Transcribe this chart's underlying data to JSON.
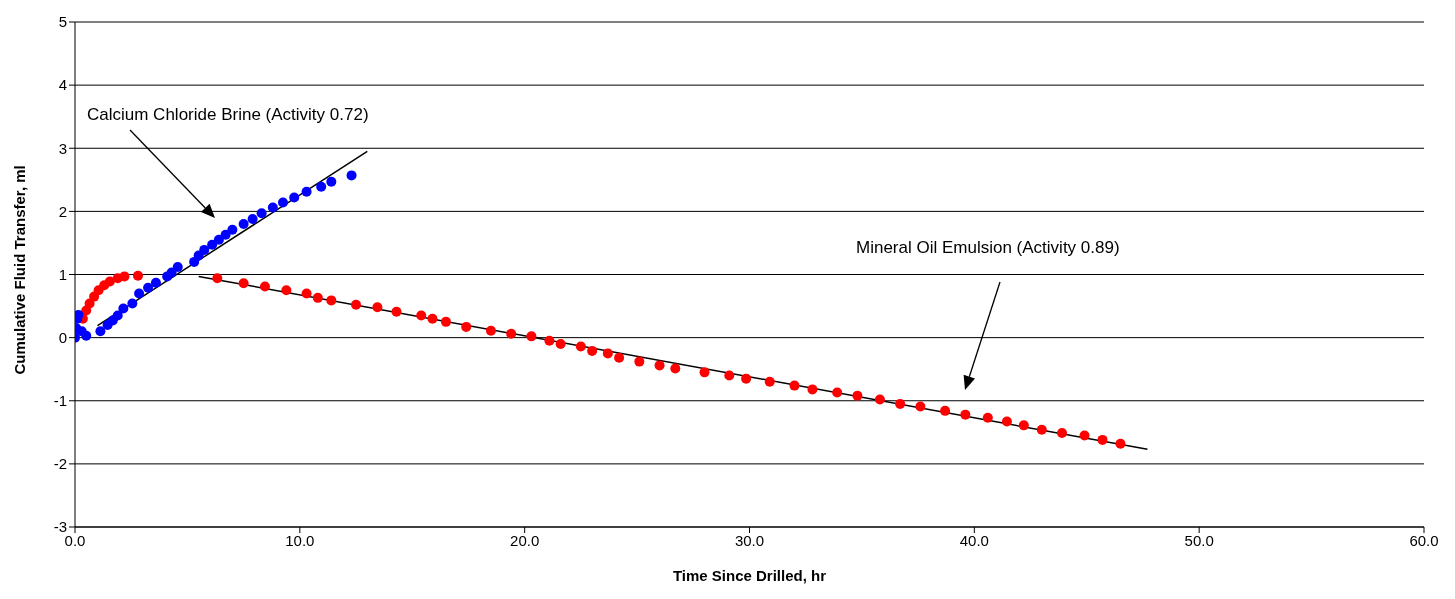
{
  "chart_data": {
    "type": "scatter",
    "xlabel": "Time Since Drilled, hr",
    "ylabel": "Cumulative Fluid Transfer, ml",
    "xlim": [
      0,
      60
    ],
    "xticks": [
      {
        "value": 0,
        "label": "0.0"
      },
      {
        "value": 10,
        "label": "10.0"
      },
      {
        "value": 20,
        "label": "20.0"
      },
      {
        "value": 30,
        "label": "30.0"
      },
      {
        "value": 40,
        "label": "40.0"
      },
      {
        "value": 50,
        "label": "50.0"
      },
      {
        "value": 60,
        "label": "60.0"
      }
    ],
    "ylim": [
      -3,
      5
    ],
    "yticks": [
      -3,
      -2,
      -1,
      0,
      1,
      2,
      3,
      4,
      5
    ],
    "grid": "y",
    "legend": false,
    "marker": "circle",
    "series": [
      {
        "color": "#ff0000",
        "x": [
          0.35,
          0.5,
          0.65,
          0.85,
          1.05,
          1.3,
          1.55,
          1.9,
          2.2,
          2.8,
          6.33,
          7.5,
          8.45,
          9.4,
          10.3,
          10.8,
          11.4,
          12.5,
          13.45,
          14.3,
          15.4,
          15.9,
          16.5,
          17.4,
          18.5,
          19.4,
          20.3,
          21.1,
          21.6,
          22.5,
          23.0,
          23.7,
          24.2,
          25.1,
          26.0,
          26.7,
          28.0,
          29.1,
          29.85,
          30.9,
          32.0,
          32.8,
          33.9,
          34.8,
          35.8,
          36.7,
          37.6,
          38.7,
          39.6,
          40.6,
          41.45,
          42.2,
          43.0,
          43.9,
          44.9,
          45.7,
          46.5
        ],
        "values": [
          0.3,
          0.43,
          0.54,
          0.65,
          0.75,
          0.83,
          0.89,
          0.94,
          0.97,
          0.98,
          0.94,
          0.86,
          0.81,
          0.75,
          0.7,
          0.63,
          0.59,
          0.52,
          0.48,
          0.41,
          0.35,
          0.3,
          0.25,
          0.17,
          0.11,
          0.06,
          0.02,
          -0.05,
          -0.1,
          -0.14,
          -0.21,
          -0.25,
          -0.32,
          -0.38,
          -0.44,
          -0.49,
          -0.55,
          -0.6,
          -0.65,
          -0.7,
          -0.76,
          -0.82,
          -0.87,
          -0.92,
          -0.98,
          -1.05,
          -1.09,
          -1.16,
          -1.22,
          -1.27,
          -1.33,
          -1.39,
          -1.46,
          -1.51,
          -1.55,
          -1.62,
          -1.68
        ]
      },
      {
        "color": "#0000ff",
        "x": [
          0.0,
          0.05,
          0.1,
          0.15,
          0.3,
          0.5,
          1.13,
          1.45,
          1.68,
          1.9,
          2.15,
          2.55,
          2.85,
          3.25,
          3.6,
          4.1,
          4.3,
          4.57,
          5.3,
          5.5,
          5.75,
          6.1,
          6.4,
          6.7,
          7.0,
          7.5,
          7.9,
          8.3,
          8.8,
          9.25,
          9.75,
          10.3,
          10.95,
          11.4,
          12.3
        ],
        "values": [
          0.0,
          0.15,
          0.3,
          0.36,
          0.1,
          0.03,
          0.1,
          0.2,
          0.27,
          0.35,
          0.46,
          0.54,
          0.7,
          0.79,
          0.87,
          0.97,
          1.03,
          1.12,
          1.2,
          1.3,
          1.39,
          1.47,
          1.55,
          1.63,
          1.71,
          1.8,
          1.88,
          1.97,
          2.06,
          2.14,
          2.22,
          2.31,
          2.39,
          2.47,
          2.57
        ]
      },
      {
        "type": "line",
        "marker": "none",
        "color": "#000000",
        "x": [
          1.0,
          13.0
        ],
        "values": [
          0.19,
          2.95
        ]
      },
      {
        "type": "line",
        "marker": "none",
        "color": "#000000",
        "x": [
          5.5,
          47.7
        ],
        "values": [
          0.97,
          -1.77
        ]
      }
    ],
    "annotations": [
      "Calcium Chloride Brine (Activity 0.72)",
      "Mineral Oil Emulsion (Activity 0.89)"
    ]
  }
}
